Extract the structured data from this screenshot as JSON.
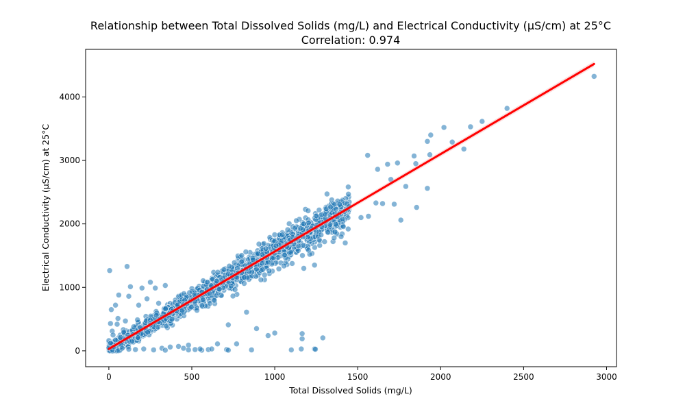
{
  "chart_data": {
    "type": "scatter",
    "title": "Relationship between Total Dissolved Solids (mg/L) and Electrical Conductivity (µS/cm) at 25°C",
    "subtitle": "Correlation: 0.974",
    "xlabel": "Total Dissolved Solids (mg/L)",
    "ylabel": "Electrical Conductivity (µS/cm) at 25°C",
    "xlim": [
      -140,
      3060
    ],
    "ylim": [
      -250,
      4750
    ],
    "xticks": [
      0,
      500,
      1000,
      1500,
      2000,
      2500,
      3000
    ],
    "yticks": [
      0,
      1000,
      2000,
      3000,
      4000
    ],
    "grid": false,
    "legend": "none",
    "colors": {
      "points": "#1f77b4",
      "point_edge": "#ffffff",
      "regression_line": "#ff0000",
      "confidence_band": "#f4a0a0"
    },
    "regression": {
      "x_start": 0,
      "y_start": 30,
      "x_end": 2925,
      "y_end": 4520
    },
    "trend_sample": {
      "count": 1500,
      "x_min": 0,
      "x_max": 1450,
      "slope": 1.55,
      "intercept": 10
    },
    "outlier_points": [
      [
        5,
        1265
      ],
      [
        110,
        1330
      ],
      [
        2925,
        4325
      ],
      [
        2400,
        3820
      ],
      [
        2250,
        3615
      ],
      [
        2180,
        3530
      ],
      [
        2020,
        3520
      ],
      [
        2070,
        3290
      ],
      [
        2140,
        3180
      ],
      [
        1940,
        3400
      ],
      [
        1920,
        3300
      ],
      [
        1935,
        3090
      ],
      [
        1920,
        2560
      ],
      [
        1855,
        2260
      ],
      [
        1760,
        2060
      ],
      [
        1720,
        2310
      ],
      [
        1650,
        2320
      ],
      [
        1610,
        2330
      ],
      [
        1565,
        2120
      ],
      [
        1560,
        3080
      ],
      [
        1620,
        2860
      ],
      [
        1680,
        2940
      ],
      [
        1740,
        2960
      ],
      [
        1790,
        2590
      ],
      [
        1850,
        2950
      ],
      [
        1840,
        3070
      ],
      [
        1700,
        2700
      ],
      [
        1520,
        2100
      ],
      [
        1425,
        1700
      ],
      [
        1400,
        1800
      ],
      [
        1320,
        1870
      ],
      [
        1240,
        1350
      ],
      [
        1175,
        1300
      ],
      [
        20,
        310
      ],
      [
        50,
        420
      ],
      [
        70,
        210
      ],
      [
        15,
        650
      ],
      [
        40,
        720
      ],
      [
        60,
        880
      ],
      [
        130,
        1010
      ],
      [
        120,
        860
      ],
      [
        200,
        990
      ],
      [
        250,
        1080
      ],
      [
        280,
        990
      ],
      [
        340,
        1030
      ],
      [
        300,
        750
      ],
      [
        230,
        820
      ],
      [
        180,
        720
      ],
      [
        10,
        120
      ],
      [
        30,
        60
      ],
      [
        80,
        40
      ],
      [
        120,
        25
      ],
      [
        160,
        20
      ],
      [
        210,
        30
      ],
      [
        270,
        15
      ],
      [
        320,
        40
      ],
      [
        340,
        10
      ],
      [
        370,
        60
      ],
      [
        420,
        70
      ],
      [
        450,
        40
      ],
      [
        480,
        90
      ],
      [
        520,
        20
      ],
      [
        560,
        10
      ],
      [
        600,
        20
      ],
      [
        620,
        30
      ],
      [
        655,
        110
      ],
      [
        710,
        20
      ],
      [
        720,
        10
      ],
      [
        770,
        110
      ],
      [
        860,
        15
      ],
      [
        890,
        350
      ],
      [
        960,
        240
      ],
      [
        1000,
        280
      ],
      [
        1100,
        15
      ],
      [
        1160,
        30
      ],
      [
        1165,
        190
      ],
      [
        1165,
        270
      ],
      [
        1240,
        30
      ],
      [
        1245,
        25
      ],
      [
        1290,
        205
      ],
      [
        720,
        410
      ],
      [
        830,
        610
      ],
      [
        550,
        30
      ],
      [
        480,
        15
      ],
      [
        40,
        170
      ],
      [
        90,
        300
      ],
      [
        150,
        380
      ],
      [
        100,
        470
      ],
      [
        10,
        430
      ],
      [
        25,
        250
      ],
      [
        55,
        510
      ],
      [
        140,
        150
      ]
    ]
  }
}
